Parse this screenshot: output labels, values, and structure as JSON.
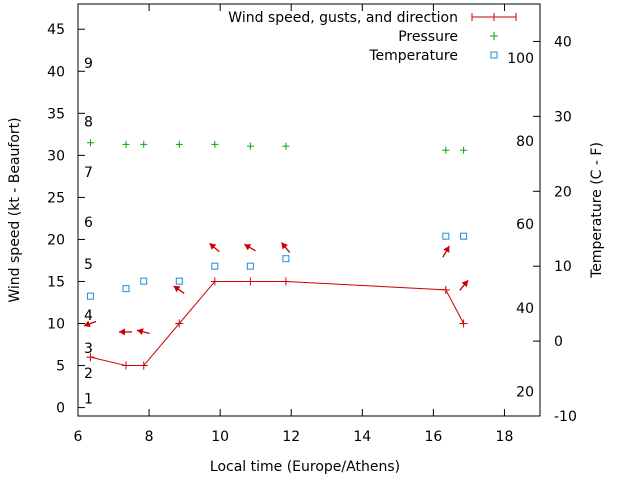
{
  "chart_data": {
    "type": "line",
    "title": "",
    "xlabel": "Local time (Europe/Athens)",
    "ylabel": "Wind speed (kt - Beaufort)",
    "y2label": "Temperature (C - F)",
    "xlim": [
      6,
      19
    ],
    "ylim": [
      -1,
      48
    ],
    "y2lim": [
      -10,
      45
    ],
    "x_ticks": [
      6,
      8,
      10,
      12,
      14,
      16,
      18
    ],
    "y_ticks": [
      0,
      5,
      10,
      15,
      20,
      25,
      30,
      35,
      40,
      45
    ],
    "y2_ticks": [
      -10,
      0,
      10,
      20,
      30,
      40
    ],
    "beaufort_labels": [
      {
        "label": "1",
        "y": 1.1
      },
      {
        "label": "2",
        "y": 4.1
      },
      {
        "label": "3",
        "y": 7.1
      },
      {
        "label": "4",
        "y": 11.0
      },
      {
        "label": "5",
        "y": 17.1
      },
      {
        "label": "6",
        "y": 22.1
      },
      {
        "label": "7",
        "y": 28.0
      },
      {
        "label": "8",
        "y": 34.0
      },
      {
        "label": "9",
        "y": 41.0
      }
    ],
    "fahrenheit_labels": [
      {
        "label": "20",
        "c": -6.7
      },
      {
        "label": "40",
        "c": 4.4
      },
      {
        "label": "60",
        "c": 15.6
      },
      {
        "label": "80",
        "c": 26.7
      },
      {
        "label": "100",
        "c": 37.8
      }
    ],
    "legend_position": "top-right",
    "series": [
      {
        "name": "Wind speed, gusts, and direction",
        "color": "#cc0000",
        "x": [
          6.35,
          7.35,
          7.85,
          8.85,
          9.85,
          10.85,
          11.85,
          16.35,
          16.85
        ],
        "y": [
          6,
          5,
          5,
          10,
          15,
          15,
          15,
          14,
          10
        ]
      },
      {
        "name": "Pressure",
        "color": "#00aa00",
        "x": [
          6.35,
          7.35,
          7.85,
          8.85,
          9.85,
          10.85,
          11.85,
          16.35,
          16.85
        ],
        "y": [
          31.5,
          31.3,
          31.3,
          31.3,
          31.3,
          31.1,
          31.1,
          30.6,
          30.6
        ]
      },
      {
        "name": "Temperature",
        "color": "#1f8ed6",
        "x": [
          6.35,
          7.35,
          7.85,
          8.85,
          9.85,
          10.85,
          11.85,
          16.35,
          16.85
        ],
        "y2": [
          6,
          7,
          8,
          8,
          10,
          10,
          11,
          14,
          14
        ]
      }
    ],
    "wind_arrows": [
      {
        "x": 6.35,
        "y": 10,
        "angle": 200
      },
      {
        "x": 7.35,
        "y": 9,
        "angle": 180
      },
      {
        "x": 7.85,
        "y": 9,
        "angle": 165
      },
      {
        "x": 8.85,
        "y": 14,
        "angle": 145
      },
      {
        "x": 9.85,
        "y": 19,
        "angle": 140
      },
      {
        "x": 10.85,
        "y": 19,
        "angle": 150
      },
      {
        "x": 11.85,
        "y": 19,
        "angle": 130
      },
      {
        "x": 16.35,
        "y": 18.5,
        "angle": 60
      },
      {
        "x": 16.85,
        "y": 14.5,
        "angle": 50
      }
    ]
  }
}
